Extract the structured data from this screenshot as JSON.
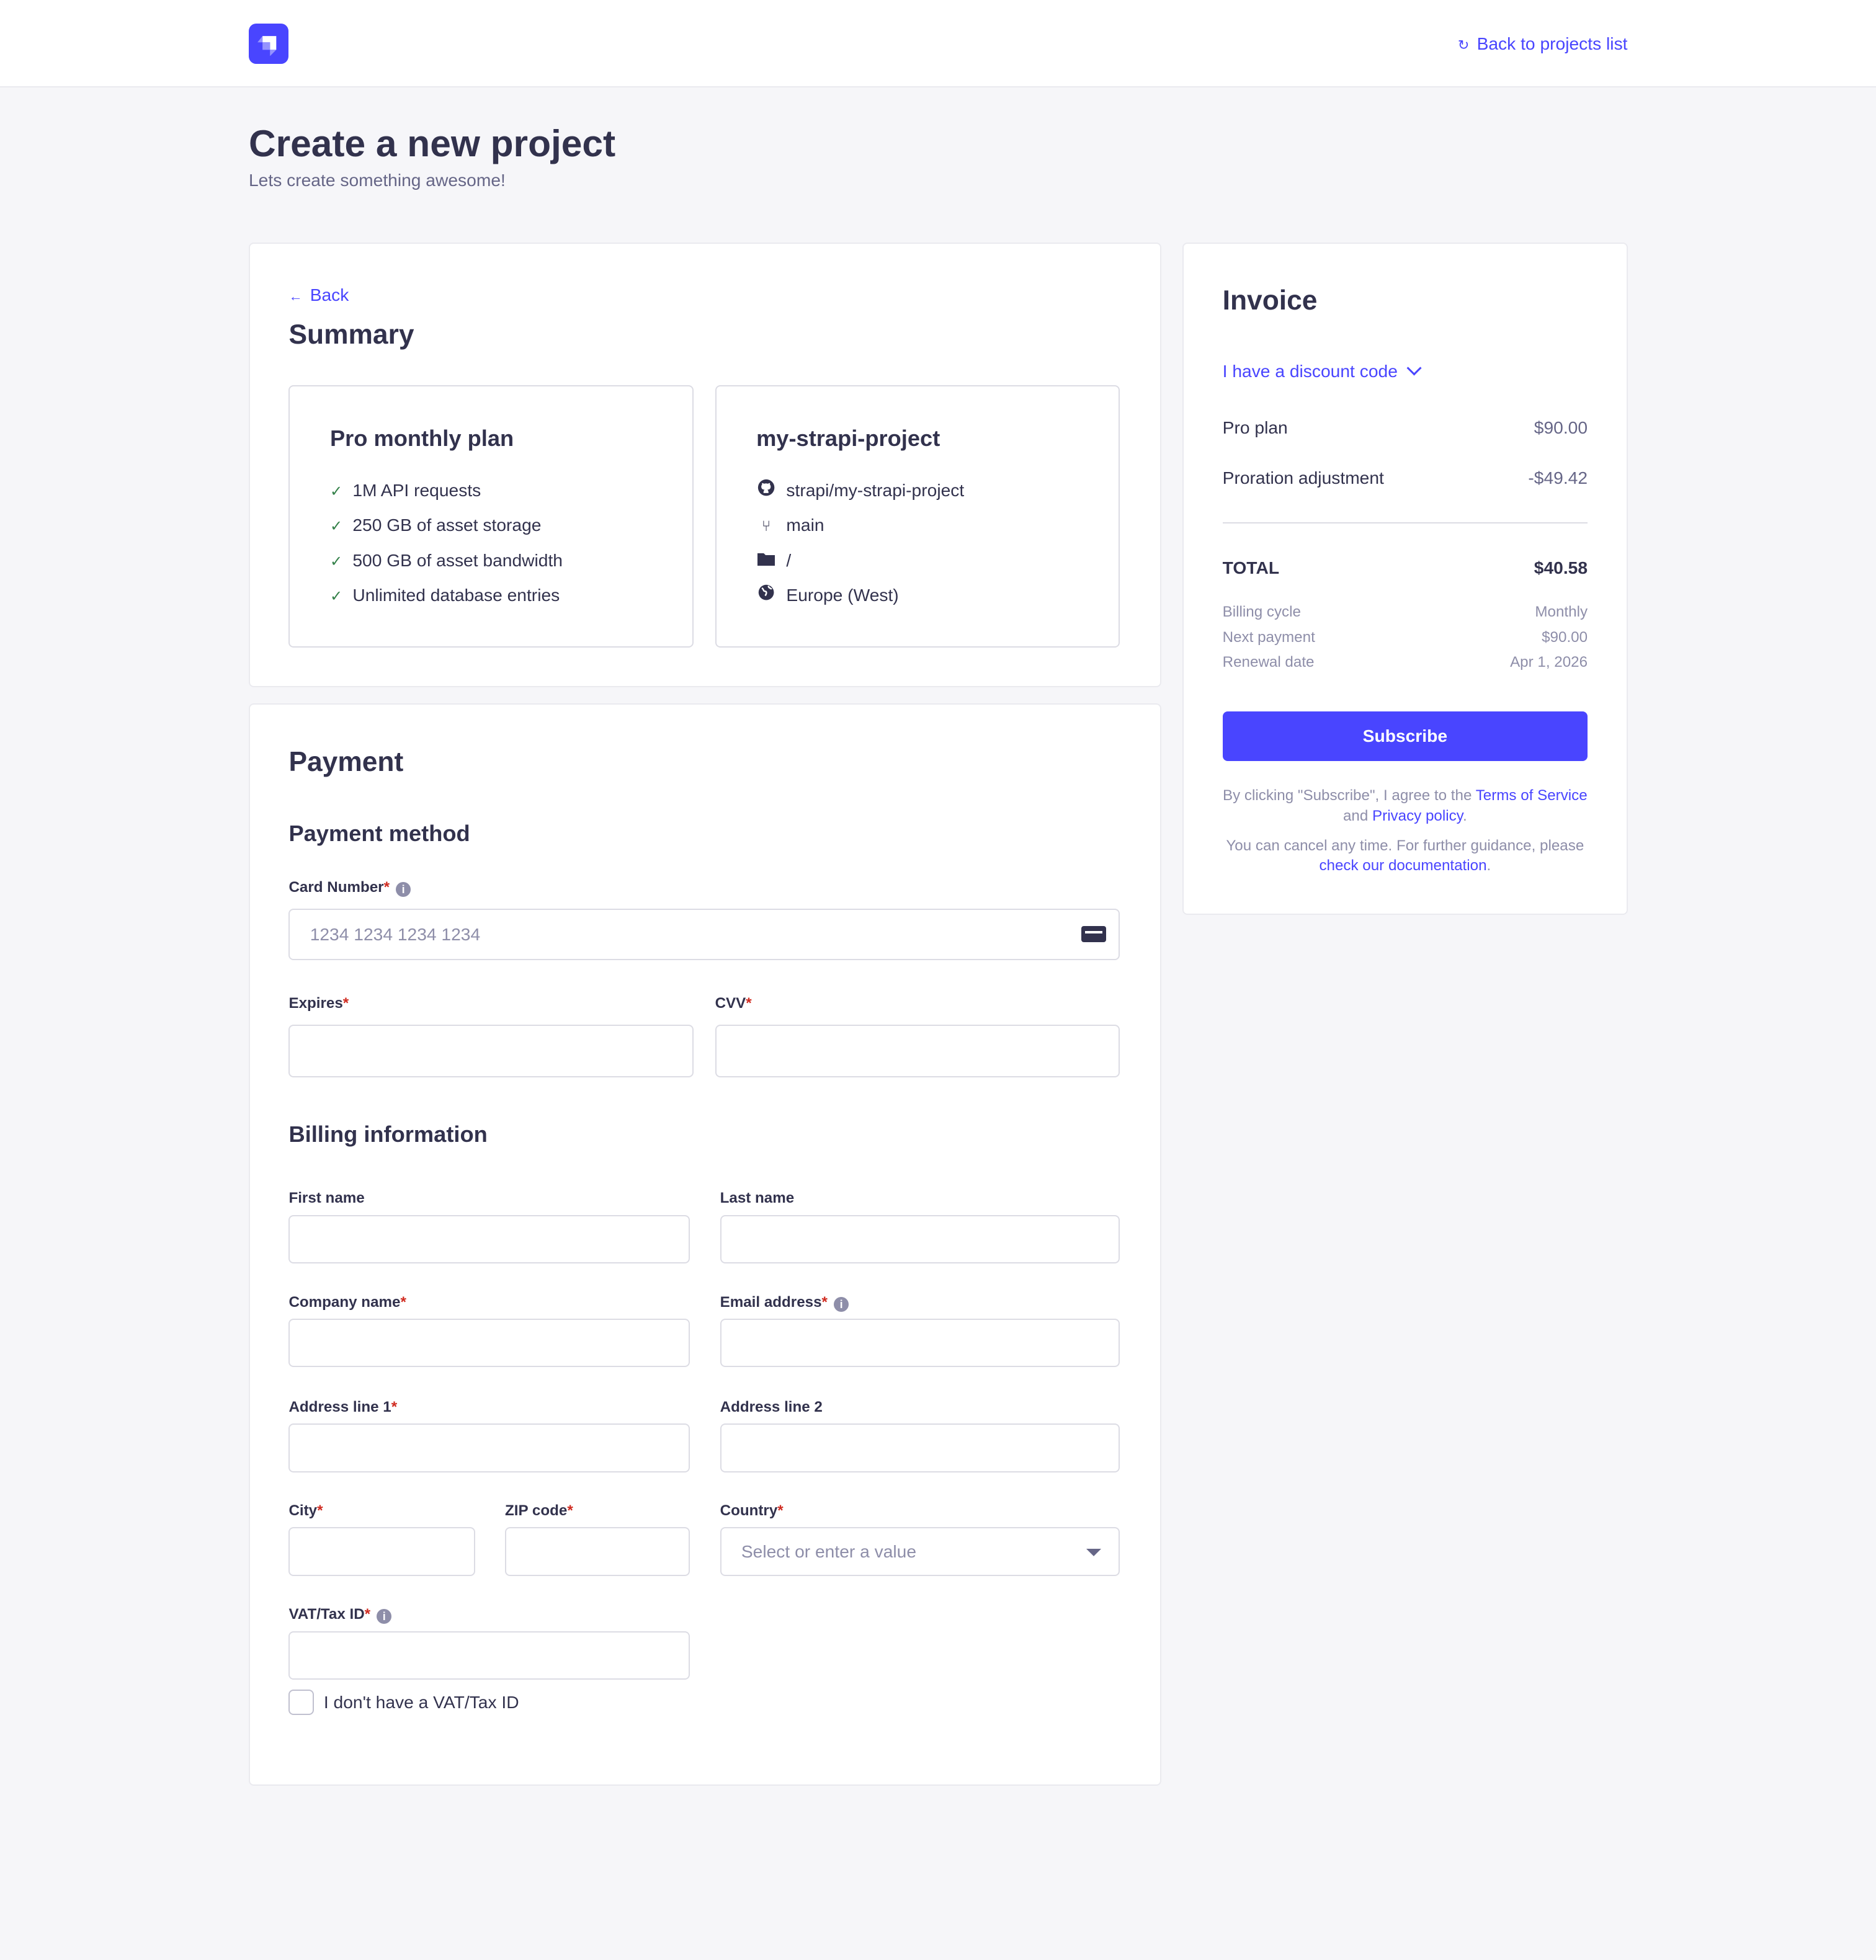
{
  "header": {
    "back_link": "Back to projects list",
    "back_icon": "refresh-arrow-icon",
    "logo": "strapi-logo"
  },
  "page": {
    "title": "Create a new project",
    "subtitle": "Lets create something awesome!"
  },
  "summary": {
    "back": "Back",
    "title": "Summary",
    "plan": {
      "title": "Pro monthly plan",
      "features": [
        "1M API requests",
        "250 GB of asset storage",
        "500 GB of asset bandwidth",
        "Unlimited database entries"
      ]
    },
    "project": {
      "title": "my-strapi-project",
      "repo": "strapi/my-strapi-project",
      "branch": "main",
      "path": "/",
      "region": "Europe (West)"
    }
  },
  "payment": {
    "title": "Payment",
    "method_title": "Payment method",
    "card_number_label": "Card Number",
    "card_number_placeholder": "1234 1234 1234 1234",
    "expires_label": "Expires",
    "cvv_label": "CVV",
    "billing_title": "Billing information",
    "first_name_label": "First name",
    "last_name_label": "Last name",
    "company_label": "Company name",
    "email_label": "Email address",
    "address1_label": "Address line 1",
    "address2_label": "Address line 2",
    "city_label": "City",
    "zip_label": "ZIP code",
    "country_label": "Country",
    "country_placeholder": "Select or enter a value",
    "vat_label": "VAT/Tax ID",
    "no_vat_label": "I don't have a VAT/Tax ID",
    "required_mark": "*",
    "info_mark": "i"
  },
  "invoice": {
    "title": "Invoice",
    "discount": "I have a discount code",
    "lines": [
      {
        "label": "Pro plan",
        "value": "$90.00"
      },
      {
        "label": "Proration adjustment",
        "value": "-$49.42"
      }
    ],
    "total_label": "TOTAL",
    "total_value": "$40.58",
    "details": [
      {
        "label": "Billing cycle",
        "value": "Monthly"
      },
      {
        "label": "Next payment",
        "value": "$90.00"
      },
      {
        "label": "Renewal date",
        "value": "Apr 1, 2026"
      }
    ],
    "subscribe": "Subscribe",
    "terms_pre": "By clicking \"Subscribe\", I agree to the ",
    "terms_link": "Terms of Service",
    "terms_and": " and ",
    "privacy_link": "Privacy policy",
    "terms_end": ".",
    "cancel_pre": "You can cancel any time. For further guidance, please ",
    "docs_link": "check our documentation",
    "cancel_end": "."
  },
  "colors": {
    "accent": "#4945ff",
    "text": "#32324d",
    "muted": "#666687",
    "required": "#d02b20",
    "success": "#328048",
    "background": "#f6f6f9"
  }
}
